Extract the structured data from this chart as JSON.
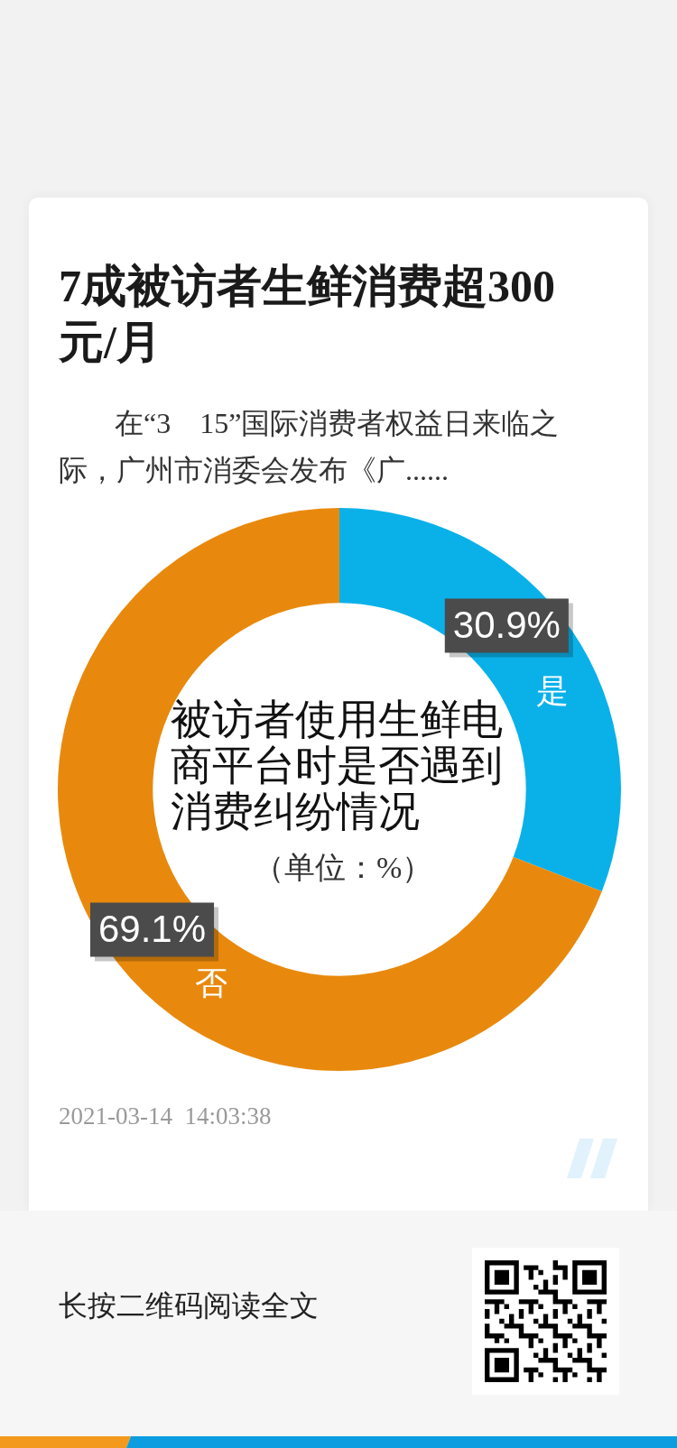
{
  "chart_data": {
    "type": "donut",
    "title": "7成被访者生鲜消费超300元/月",
    "subtitle": "在“3　15”国际消费者权益日来临之际，广州市消委会发布《广......",
    "categories": [
      "是",
      "否"
    ],
    "values": [
      30.9,
      69.1
    ],
    "colors": [
      "#0ab1e9",
      "#e8890d"
    ],
    "value_labels": [
      "30.9%",
      "69.1%"
    ],
    "annotations": [
      "被访者使用生鲜电商平台时是否遇到消费纠纷情况",
      "（单位：%）",
      "2021-03-14  14:03:38",
      "长按二维码阅读全文"
    ]
  }
}
